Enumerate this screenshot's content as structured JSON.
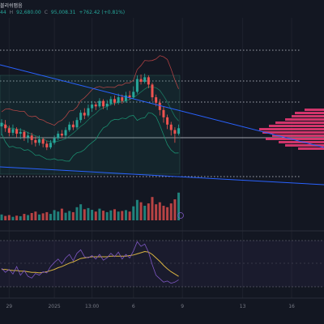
{
  "header": {
    "title": "블리쉬맵음",
    "vals": [
      "44",
      "92,680.00",
      "95,008.31",
      "+762.42 (+0.81%)"
    ],
    "prefix_h": "H",
    "prefix_c": "C"
  },
  "colors": {
    "background": "#131722",
    "up": "#26a69a",
    "down": "#ef5350",
    "trendline": "#2962ff",
    "volume_profile": "#f23b78",
    "bollinger_mid": "#d9b442",
    "bollinger_bands": "#1b8c6e",
    "rsi_line": "#7e57c2"
  },
  "chart_data": {
    "type": "candlestick",
    "price_axis": "hidden (cropped)",
    "x_tick_labels": [
      "29",
      "2025",
      "13:00",
      "6",
      "9",
      "13",
      "16"
    ],
    "x_ticks": [
      {
        "label": "29",
        "candle": 2
      },
      {
        "label": "2025",
        "candle": 14
      },
      {
        "label": "13:00",
        "candle": 24
      },
      {
        "label": "6",
        "candle": 35
      },
      {
        "label": "9",
        "candle": 48
      },
      {
        "label": "13",
        "candle": 64
      },
      {
        "label": "16",
        "candle": 77
      }
    ],
    "candles": [
      [
        0.48,
        0.52,
        0.38,
        0.56
      ],
      [
        0.5,
        0.46,
        0.42,
        0.55
      ],
      [
        0.46,
        0.41,
        0.37,
        0.49
      ],
      [
        0.41,
        0.45,
        0.38,
        0.5
      ],
      [
        0.45,
        0.4,
        0.36,
        0.47
      ],
      [
        0.4,
        0.42,
        0.34,
        0.46
      ],
      [
        0.42,
        0.36,
        0.32,
        0.44
      ],
      [
        0.36,
        0.38,
        0.3,
        0.42
      ],
      [
        0.38,
        0.33,
        0.28,
        0.41
      ],
      [
        0.33,
        0.3,
        0.26,
        0.37
      ],
      [
        0.3,
        0.34,
        0.27,
        0.38
      ],
      [
        0.34,
        0.29,
        0.25,
        0.36
      ],
      [
        0.29,
        0.25,
        0.22,
        0.32
      ],
      [
        0.25,
        0.3,
        0.23,
        0.33
      ],
      [
        0.3,
        0.35,
        0.28,
        0.38
      ],
      [
        0.35,
        0.4,
        0.33,
        0.43
      ],
      [
        0.4,
        0.38,
        0.35,
        0.44
      ],
      [
        0.38,
        0.44,
        0.36,
        0.47
      ],
      [
        0.44,
        0.5,
        0.42,
        0.53
      ],
      [
        0.5,
        0.47,
        0.44,
        0.54
      ],
      [
        0.47,
        0.55,
        0.45,
        0.58
      ],
      [
        0.55,
        0.63,
        0.52,
        0.66
      ],
      [
        0.63,
        0.6,
        0.56,
        0.68
      ],
      [
        0.6,
        0.68,
        0.58,
        0.72
      ],
      [
        0.68,
        0.72,
        0.64,
        0.76
      ],
      [
        0.72,
        0.7,
        0.66,
        0.75
      ],
      [
        0.7,
        0.76,
        0.68,
        0.79
      ],
      [
        0.76,
        0.7,
        0.67,
        0.78
      ],
      [
        0.7,
        0.73,
        0.66,
        0.77
      ],
      [
        0.73,
        0.78,
        0.71,
        0.81
      ],
      [
        0.78,
        0.74,
        0.71,
        0.82
      ],
      [
        0.74,
        0.8,
        0.72,
        0.84
      ],
      [
        0.8,
        0.76,
        0.73,
        0.83
      ],
      [
        0.76,
        0.82,
        0.74,
        0.86
      ],
      [
        0.82,
        0.8,
        0.77,
        0.87
      ],
      [
        0.8,
        0.86,
        0.78,
        0.92
      ],
      [
        0.86,
        1.0,
        0.84,
        1.04
      ],
      [
        1.0,
        0.97,
        0.94,
        1.05
      ],
      [
        0.97,
        1.02,
        0.95,
        1.06
      ],
      [
        1.02,
        0.94,
        0.9,
        1.04
      ],
      [
        0.94,
        0.8,
        0.76,
        0.96
      ],
      [
        0.8,
        0.74,
        0.7,
        0.83
      ],
      [
        0.74,
        0.66,
        0.6,
        0.78
      ],
      [
        0.66,
        0.58,
        0.52,
        0.7
      ],
      [
        0.58,
        0.5,
        0.45,
        0.61
      ],
      [
        0.5,
        0.44,
        0.38,
        0.53
      ],
      [
        0.44,
        0.4,
        0.3,
        0.47
      ],
      [
        0.4,
        0.46,
        0.38,
        0.5
      ]
    ],
    "volume": [
      0.2,
      0.15,
      0.18,
      0.12,
      0.16,
      0.14,
      0.22,
      0.18,
      0.25,
      0.3,
      0.2,
      0.24,
      0.28,
      0.22,
      0.35,
      0.3,
      0.4,
      0.26,
      0.32,
      0.28,
      0.45,
      0.55,
      0.38,
      0.42,
      0.36,
      0.3,
      0.4,
      0.33,
      0.28,
      0.34,
      0.38,
      0.3,
      0.32,
      0.35,
      0.3,
      0.48,
      0.7,
      0.62,
      0.5,
      0.58,
      0.8,
      0.55,
      0.62,
      0.5,
      0.45,
      0.58,
      0.72,
      0.95
    ],
    "rsi": [
      42,
      35,
      40,
      32,
      45,
      30,
      38,
      28,
      25,
      33,
      30,
      36,
      34,
      45,
      52,
      58,
      50,
      60,
      66,
      55,
      68,
      74,
      62,
      60,
      64,
      58,
      66,
      56,
      60,
      68,
      62,
      70,
      58,
      66,
      60,
      72,
      88,
      80,
      84,
      70,
      48,
      30,
      24,
      18,
      20,
      16,
      18,
      22
    ],
    "rsi_ma": [
      40,
      40,
      39,
      38,
      38,
      37,
      37,
      36,
      35,
      35,
      34,
      35,
      36,
      38,
      40,
      43,
      45,
      48,
      51,
      53,
      56,
      59,
      60,
      61,
      62,
      62,
      62,
      62,
      62,
      63,
      63,
      63,
      63,
      63,
      64,
      65,
      67,
      69,
      71,
      70,
      66,
      60,
      54,
      47,
      41,
      36,
      32,
      28
    ],
    "volume_profile": [
      0.3,
      0.45,
      0.5,
      0.6,
      0.75,
      0.85,
      1.0,
      0.95,
      0.8,
      0.9,
      0.7,
      0.6,
      0.4
    ]
  }
}
